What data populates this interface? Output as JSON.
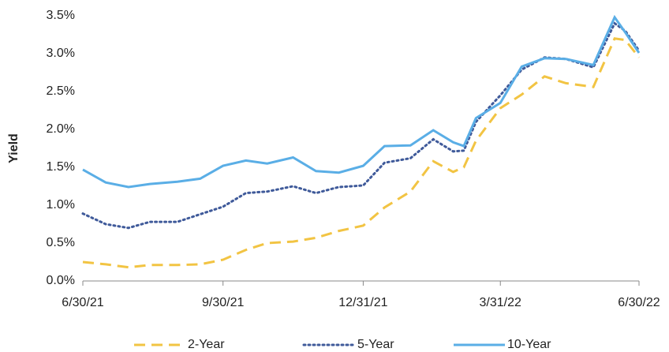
{
  "chart_data": {
    "type": "line",
    "y_label": "Yield",
    "x": [
      "6/30/21",
      "7/15/21",
      "7/30/21",
      "8/13/21",
      "8/31/21",
      "9/15/21",
      "9/30/21",
      "10/15/21",
      "10/29/21",
      "11/15/21",
      "11/30/21",
      "12/15/21",
      "12/31/21",
      "1/14/22",
      "1/31/22",
      "2/15/22",
      "2/28/22",
      "3/7/22",
      "3/15/22",
      "3/31/22",
      "4/14/22",
      "4/29/22",
      "5/13/22",
      "5/31/22",
      "6/14/22",
      "6/21/22",
      "6/30/22"
    ],
    "series": [
      {
        "name": "2-Year",
        "color": "#f2c443",
        "style": "dashed",
        "values": [
          0.25,
          0.22,
          0.18,
          0.21,
          0.21,
          0.22,
          0.28,
          0.41,
          0.5,
          0.52,
          0.57,
          0.66,
          0.73,
          0.97,
          1.18,
          1.58,
          1.44,
          1.5,
          1.85,
          2.28,
          2.46,
          2.7,
          2.61,
          2.56,
          3.2,
          3.18,
          2.95
        ]
      },
      {
        "name": "5-Year",
        "color": "#3f5a9a",
        "style": "dotted",
        "values": [
          0.89,
          0.75,
          0.7,
          0.78,
          0.78,
          0.88,
          0.98,
          1.16,
          1.18,
          1.25,
          1.16,
          1.24,
          1.26,
          1.56,
          1.62,
          1.87,
          1.71,
          1.72,
          2.1,
          2.45,
          2.79,
          2.95,
          2.93,
          2.82,
          3.4,
          3.3,
          3.04
        ]
      },
      {
        "name": "10-Year",
        "color": "#5aaee6",
        "style": "solid",
        "values": [
          1.47,
          1.3,
          1.24,
          1.28,
          1.31,
          1.35,
          1.52,
          1.59,
          1.55,
          1.63,
          1.45,
          1.43,
          1.52,
          1.78,
          1.79,
          1.99,
          1.83,
          1.78,
          2.15,
          2.35,
          2.83,
          2.94,
          2.93,
          2.85,
          3.48,
          3.28,
          3.01
        ]
      }
    ],
    "xlim": [
      "6/30/21",
      "6/30/22"
    ],
    "xticks": [
      "6/30/21",
      "9/30/21",
      "12/31/21",
      "3/31/22",
      "6/30/22"
    ],
    "ylim": [
      0,
      3.5
    ],
    "yticks": [
      {
        "value": 0,
        "label": "0.0%"
      },
      {
        "value": 0.5,
        "label": "0.5%"
      },
      {
        "value": 1,
        "label": "1.0%"
      },
      {
        "value": 1.5,
        "label": "1.5%"
      },
      {
        "value": 2,
        "label": "2.0%"
      },
      {
        "value": 2.5,
        "label": "2.5%"
      },
      {
        "value": 3,
        "label": "3.0%"
      },
      {
        "value": 3.5,
        "label": "3.5%"
      }
    ],
    "grid": false,
    "legend": "bottom"
  }
}
